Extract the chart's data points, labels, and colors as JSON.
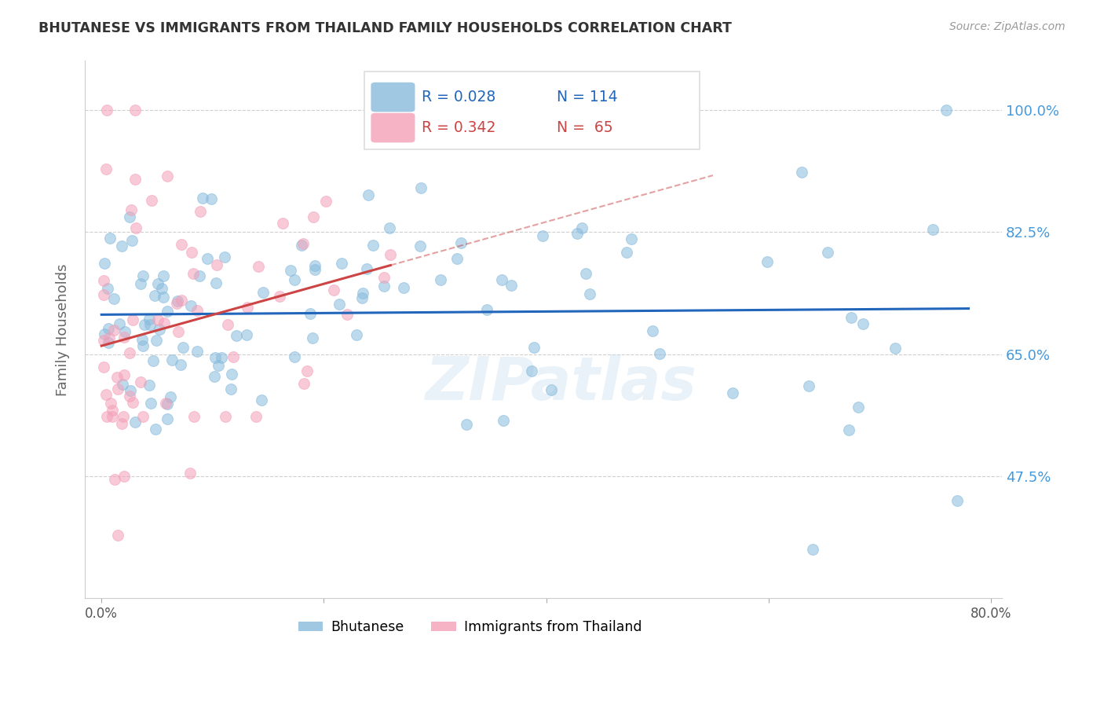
{
  "title": "BHUTANESE VS IMMIGRANTS FROM THAILAND FAMILY HOUSEHOLDS CORRELATION CHART",
  "source": "Source: ZipAtlas.com",
  "ylabel": "Family Households",
  "blue_color": "#88bbdd",
  "pink_color": "#f4a0b8",
  "blue_line_color": "#2266bb",
  "pink_line_color": "#cc4444",
  "grid_color": "#bbbbbb",
  "right_tick_color": "#4499dd",
  "legend_blue_r": "R = 0.028",
  "legend_blue_n": "N = 114",
  "legend_pink_r": "R = 0.342",
  "legend_pink_n": "N =  65",
  "blue_label": "Bhutanese",
  "pink_label": "Immigrants from Thailand",
  "watermark": "ZIPatlas",
  "bg_color": "#ffffff",
  "marker_size": 100,
  "marker_alpha": 0.55
}
